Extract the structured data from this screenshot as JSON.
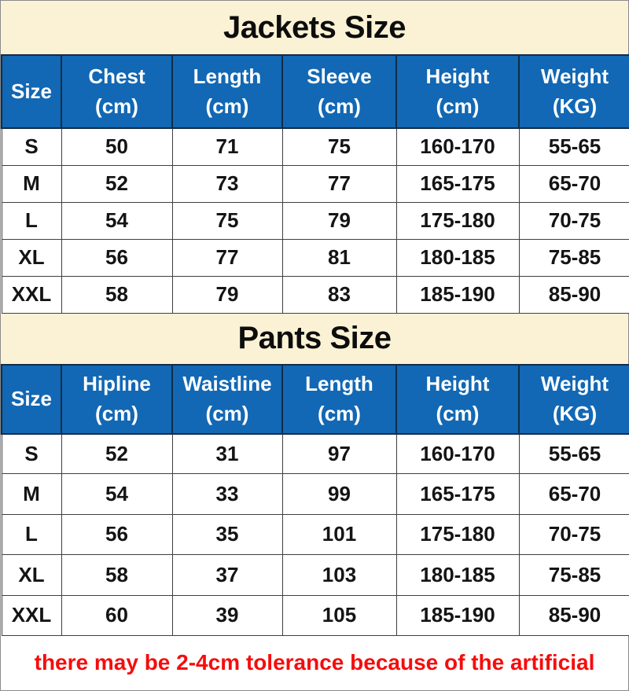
{
  "colors": {
    "title_band_bg": "#FBF2D5",
    "header_bg": "#1268B4",
    "header_text": "#FFFFFF",
    "cell_text": "#141414",
    "note_text": "#F50D0D"
  },
  "jackets": {
    "title": "Jackets Size",
    "columns": [
      {
        "label": "Size",
        "sub": ""
      },
      {
        "label": "Chest",
        "sub": "(cm)"
      },
      {
        "label": "Length",
        "sub": "(cm)"
      },
      {
        "label": "Sleeve",
        "sub": "(cm)"
      },
      {
        "label": "Height",
        "sub": "(cm)"
      },
      {
        "label": "Weight",
        "sub": "(KG)"
      }
    ],
    "rows": [
      [
        "S",
        "50",
        "71",
        "75",
        "160-170",
        "55-65"
      ],
      [
        "M",
        "52",
        "73",
        "77",
        "165-175",
        "65-70"
      ],
      [
        "L",
        "54",
        "75",
        "79",
        "175-180",
        "70-75"
      ],
      [
        "XL",
        "56",
        "77",
        "81",
        "180-185",
        "75-85"
      ],
      [
        "XXL",
        "58",
        "79",
        "83",
        "185-190",
        "85-90"
      ]
    ]
  },
  "pants": {
    "title": "Pants Size",
    "columns": [
      {
        "label": "Size",
        "sub": ""
      },
      {
        "label": "Hipline",
        "sub": "(cm)"
      },
      {
        "label": "Waistline",
        "sub": "(cm)"
      },
      {
        "label": "Length",
        "sub": "(cm)"
      },
      {
        "label": "Height",
        "sub": "(cm)"
      },
      {
        "label": "Weight",
        "sub": "(KG)"
      }
    ],
    "rows": [
      [
        "S",
        "52",
        "31",
        "97",
        "160-170",
        "55-65"
      ],
      [
        "M",
        "54",
        "33",
        "99",
        "165-175",
        "65-70"
      ],
      [
        "L",
        "56",
        "35",
        "101",
        "175-180",
        "70-75"
      ],
      [
        "XL",
        "58",
        "37",
        "103",
        "180-185",
        "75-85"
      ],
      [
        "XXL",
        "60",
        "39",
        "105",
        "185-190",
        "85-90"
      ]
    ]
  },
  "note": {
    "text": "there may be 2-4cm tolerance because of the artificial"
  }
}
